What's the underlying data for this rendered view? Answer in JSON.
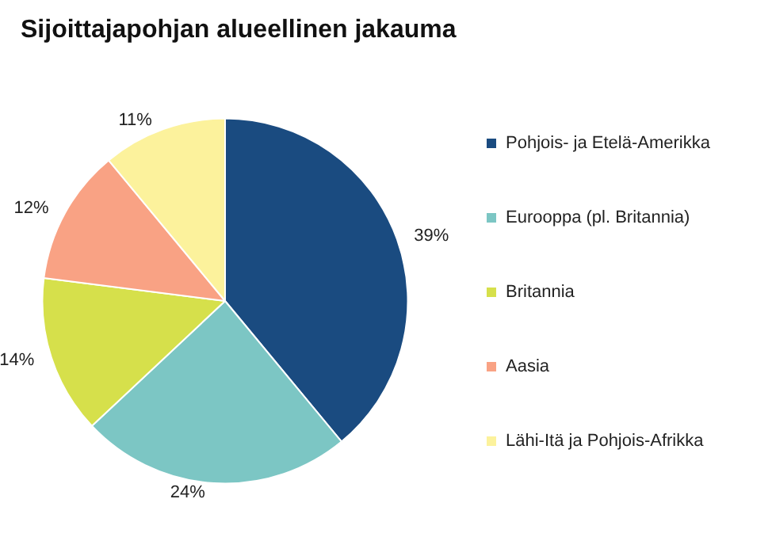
{
  "chart_data": {
    "type": "pie",
    "title": "Sijoittajapohjan alueellinen jakauma",
    "categories": [
      "Pohjois- ja Etelä-Amerikka",
      "Eurooppa (pl. Britannia)",
      "Britannia",
      "Aasia",
      "Lähi-Itä ja Pohjois-Afrikka"
    ],
    "values": [
      39,
      24,
      14,
      12,
      11
    ],
    "value_labels": [
      "39%",
      "24%",
      "14%",
      "12%",
      "11%"
    ],
    "colors": [
      "#1a4b80",
      "#7cc6c4",
      "#d6e04b",
      "#f9a284",
      "#fcf29c"
    ],
    "legend": "right"
  }
}
